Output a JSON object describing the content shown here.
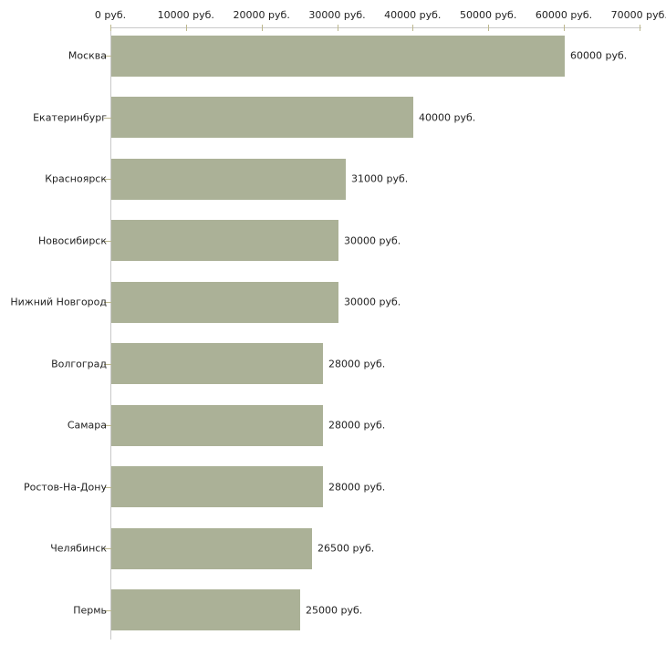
{
  "chart_data": {
    "type": "bar",
    "orientation": "horizontal",
    "categories": [
      "Москва",
      "Екатеринбург",
      "Красноярск",
      "Новосибирск",
      "Нижний Новгород",
      "Волгоград",
      "Самара",
      "Ростов-На-Дону",
      "Челябинск",
      "Пермь"
    ],
    "values": [
      60000,
      40000,
      31000,
      30000,
      30000,
      28000,
      28000,
      28000,
      26500,
      25000
    ],
    "value_labels": [
      "60000 руб.",
      "40000 руб.",
      "31000 руб.",
      "30000 руб.",
      "30000 руб.",
      "28000 руб.",
      "28000 руб.",
      "28000 руб.",
      "26500 руб.",
      "25000 руб."
    ],
    "x_ticks": [
      0,
      10000,
      20000,
      30000,
      40000,
      50000,
      60000,
      70000
    ],
    "x_tick_labels": [
      "0 руб.",
      "10000 руб.",
      "20000 руб.",
      "30000 руб.",
      "40000 руб.",
      "50000 руб.",
      "60000 руб.",
      "70000 руб."
    ],
    "xlim": [
      0,
      70000
    ],
    "unit": "руб.",
    "title": "",
    "xlabel": "",
    "ylabel": "",
    "grid": false,
    "legend": null,
    "value_label_position": "right-of-bar",
    "bar_color": "#abb197",
    "axis_color": "#c9c9c9",
    "tick_color": "#bdb88e",
    "text_color": "#222222",
    "background_color": "#ffffff"
  }
}
